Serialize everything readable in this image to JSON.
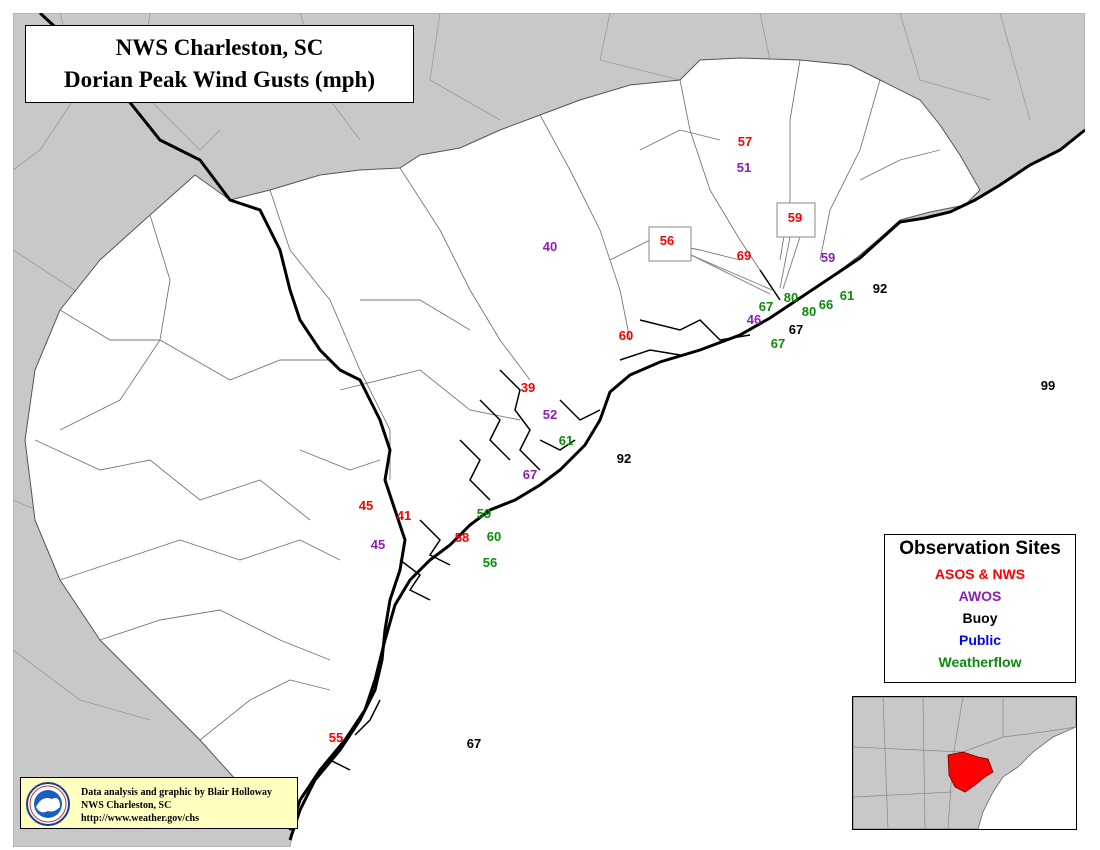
{
  "title": {
    "line1": "NWS Charleston, SC",
    "line2": "Dorian Peak Wind Gusts (mph)"
  },
  "legend": {
    "title": "Observation Sites",
    "items": [
      {
        "label": "ASOS & NWS",
        "color": "#ff0000"
      },
      {
        "label": "AWOS",
        "color": "#8a1fb8"
      },
      {
        "label": "Buoy",
        "color": "#000000"
      },
      {
        "label": "Public",
        "color": "#0000ff"
      },
      {
        "label": "Weatherflow",
        "color": "#0b8a0b"
      }
    ]
  },
  "credit": {
    "line1": "Data analysis and graphic by Blair Holloway",
    "line2": "NWS Charleston, SC",
    "line3": "http://www.weather.gov/chs",
    "logo_text": "NATIONAL WEATHER SERVICE"
  },
  "colors": {
    "asos": "#ff0000",
    "awos": "#8a1fb8",
    "buoy": "#000000",
    "weatherflow": "#0b8a0b",
    "land_outside": "#c8c8c8",
    "ocean": "#ffffff",
    "highlight": "#ff0000"
  },
  "observations": [
    {
      "value": "57",
      "type": "asos"
    },
    {
      "value": "51",
      "type": "awos"
    },
    {
      "value": "59",
      "type": "asos",
      "callout": true
    },
    {
      "value": "56",
      "type": "asos",
      "callout": true
    },
    {
      "value": "69",
      "type": "asos"
    },
    {
      "value": "59",
      "type": "awos"
    },
    {
      "value": "40",
      "type": "awos"
    },
    {
      "value": "92",
      "type": "buoy"
    },
    {
      "value": "80",
      "type": "weatherflow"
    },
    {
      "value": "67",
      "type": "weatherflow"
    },
    {
      "value": "80",
      "type": "weatherflow"
    },
    {
      "value": "66",
      "type": "weatherflow"
    },
    {
      "value": "61",
      "type": "weatherflow"
    },
    {
      "value": "46",
      "type": "awos"
    },
    {
      "value": "67",
      "type": "buoy"
    },
    {
      "value": "67",
      "type": "weatherflow"
    },
    {
      "value": "60",
      "type": "asos"
    },
    {
      "value": "99",
      "type": "buoy"
    },
    {
      "value": "39",
      "type": "asos"
    },
    {
      "value": "52",
      "type": "awos"
    },
    {
      "value": "61",
      "type": "weatherflow"
    },
    {
      "value": "92",
      "type": "buoy"
    },
    {
      "value": "67",
      "type": "awos"
    },
    {
      "value": "45",
      "type": "asos"
    },
    {
      "value": "41",
      "type": "asos"
    },
    {
      "value": "59",
      "type": "weatherflow"
    },
    {
      "value": "58",
      "type": "asos"
    },
    {
      "value": "60",
      "type": "weatherflow"
    },
    {
      "value": "45",
      "type": "awos"
    },
    {
      "value": "56",
      "type": "weatherflow"
    },
    {
      "value": "55",
      "type": "asos"
    },
    {
      "value": "67",
      "type": "buoy"
    }
  ]
}
